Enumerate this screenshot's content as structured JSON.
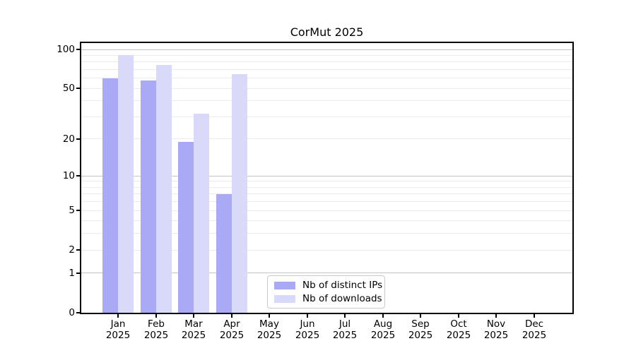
{
  "title": "CorMut 2025",
  "colors": {
    "bar_distinct_ips": "#a9a9f6",
    "bar_downloads": "#d9d9fa",
    "grid_major": "#c4c4c4",
    "grid_minor": "#ebebeb",
    "axis": "#000000",
    "legend_border": "#c9c9c9"
  },
  "chart_data": {
    "type": "bar",
    "title": "CorMut 2025",
    "categories": [
      "Jan",
      "Feb",
      "Mar",
      "Apr",
      "May",
      "Jun",
      "Jul",
      "Aug",
      "Sep",
      "Oct",
      "Nov",
      "Dec"
    ],
    "category_year": "2025",
    "series": [
      {
        "name": "Nb of distinct IPs",
        "color": "#a9a9f6",
        "values": [
          60,
          58,
          19,
          7,
          0,
          0,
          0,
          0,
          0,
          0,
          0,
          0
        ]
      },
      {
        "name": "Nb of downloads",
        "color": "#d9d9fa",
        "values": [
          91,
          76,
          32,
          65,
          0,
          0,
          0,
          0,
          0,
          0,
          0,
          0
        ]
      }
    ],
    "yscale": "log1p",
    "yticks": [
      100,
      50,
      20,
      10,
      5,
      2,
      1,
      0
    ],
    "ylim": [
      0,
      112
    ],
    "grid_major": [
      1,
      10,
      100
    ],
    "grid_minor": [
      2,
      3,
      4,
      5,
      6,
      7,
      8,
      9,
      20,
      30,
      40,
      50,
      60,
      70,
      80,
      90
    ],
    "xlabel": "",
    "ylabel": "",
    "grid": "on",
    "legend_position": "lower center"
  }
}
